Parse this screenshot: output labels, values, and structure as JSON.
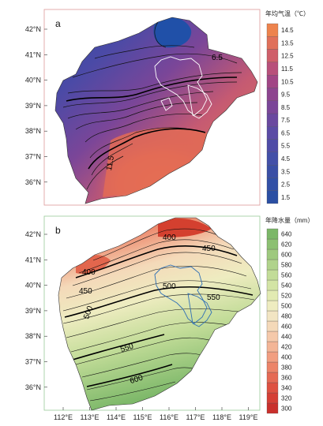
{
  "panels": [
    {
      "letter": "a",
      "legend_title": "年均气温（℃）",
      "legend_ticks": [
        "1.5",
        "2.5",
        "3.5",
        "4.5",
        "5.5",
        "6.5",
        "7.5",
        "8.5",
        "9.5",
        "10.5",
        "11.5",
        "12.5",
        "13.5",
        "14.5"
      ],
      "legend_colors": [
        "#2b4fa3",
        "#3250a6",
        "#3a4fa5",
        "#4350a8",
        "#4f4ca7",
        "#5b4ba5",
        "#6a489f",
        "#7b4698",
        "#8d448f",
        "#a14585",
        "#b8507a",
        "#cf5f6a",
        "#e0705a",
        "#ed834d"
      ],
      "contour_labels": [
        "6.5",
        "11.5"
      ]
    },
    {
      "letter": "b",
      "legend_title": "年降水量（mm）",
      "legend_ticks": [
        "300",
        "320",
        "340",
        "360",
        "380",
        "400",
        "420",
        "440",
        "460",
        "480",
        "500",
        "520",
        "540",
        "560",
        "580",
        "600",
        "620",
        "640"
      ],
      "legend_colors": [
        "#c9302c",
        "#d53f35",
        "#de5141",
        "#e56a54",
        "#ec8468",
        "#f19e80",
        "#f3b596",
        "#f5c9aa",
        "#f4d9b9",
        "#f2e5c3",
        "#eeecc0",
        "#e2eab2",
        "#d3e4a5",
        "#c2dc98",
        "#b0d38b",
        "#9ec97e",
        "#8cc072",
        "#7bb768"
      ],
      "contour_labels": [
        "400",
        "450",
        "450",
        "500",
        "500",
        "550",
        "550",
        "600",
        "400"
      ]
    }
  ],
  "lat_labels": [
    "42°N",
    "41°N",
    "40°N",
    "39°N",
    "38°N",
    "37°N",
    "36°N"
  ],
  "lon_labels": [
    "112°E",
    "113°E",
    "114°E",
    "115°E",
    "116°E",
    "117°E",
    "118°E",
    "119°E"
  ]
}
